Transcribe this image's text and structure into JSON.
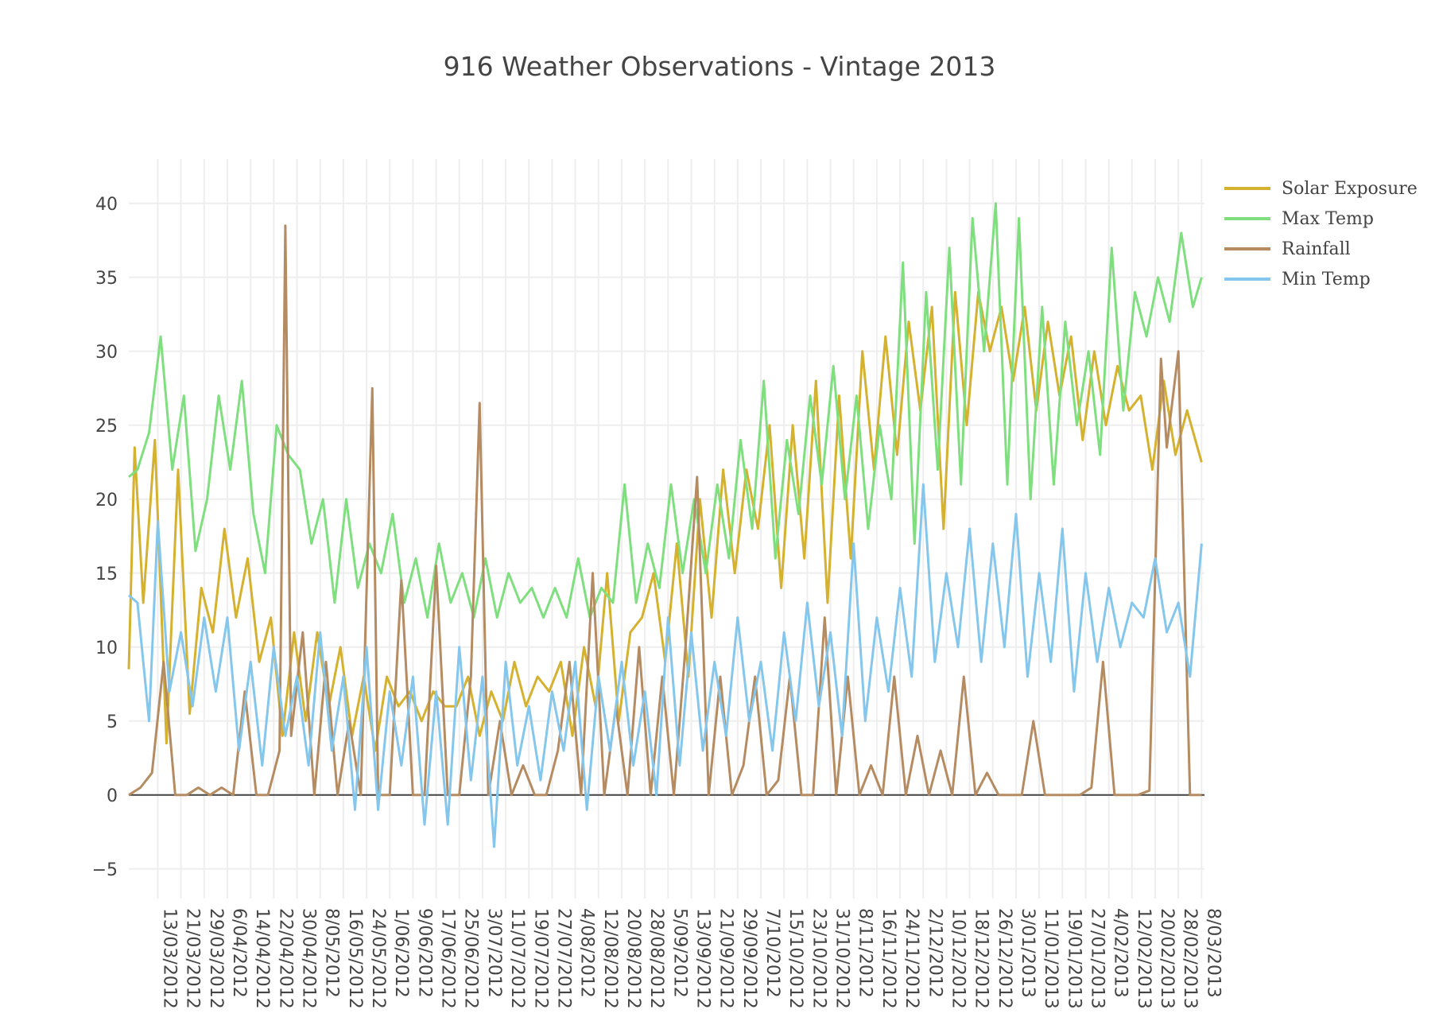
{
  "chart_data": {
    "type": "line",
    "title": "916 Weather Observations - Vintage 2013",
    "xlabel": "",
    "ylabel": "",
    "ylim": [
      -7,
      43
    ],
    "yticks": [
      -5,
      0,
      5,
      10,
      15,
      20,
      25,
      30,
      35,
      40
    ],
    "xlim": [
      "2012-03-03",
      "2013-03-09"
    ],
    "xtick_labels": [
      "13/03/2012",
      "21/03/2012",
      "29/03/2012",
      "6/04/2012",
      "14/04/2012",
      "22/04/2012",
      "30/04/2012",
      "8/05/2012",
      "16/05/2012",
      "24/05/2012",
      "1/06/2012",
      "9/06/2012",
      "17/06/2012",
      "25/06/2012",
      "3/07/2012",
      "11/07/2012",
      "19/07/2012",
      "27/07/2012",
      "4/08/2012",
      "12/08/2012",
      "20/08/2012",
      "28/08/2012",
      "5/09/2012",
      "13/09/2012",
      "21/09/2012",
      "29/09/2012",
      "7/10/2012",
      "15/10/2012",
      "23/10/2012",
      "31/10/2012",
      "8/11/2012",
      "16/11/2012",
      "24/11/2012",
      "2/12/2012",
      "10/12/2012",
      "18/12/2012",
      "26/12/2012",
      "3/01/2013",
      "11/01/2013",
      "19/01/2013",
      "27/01/2013",
      "4/02/2013",
      "12/02/2013",
      "20/02/2013",
      "28/02/2013",
      "8/03/2013"
    ],
    "grid": true,
    "legend_position": "top-right",
    "series": [
      {
        "name": "Solar Exposure",
        "color": "#d4b12f",
        "x": [
          "2012-03-03",
          "2012-03-05",
          "2012-03-08",
          "2012-03-12",
          "2012-03-16",
          "2012-03-20",
          "2012-03-24",
          "2012-03-28",
          "2012-04-01",
          "2012-04-05",
          "2012-04-09",
          "2012-04-13",
          "2012-04-17",
          "2012-04-21",
          "2012-04-25",
          "2012-04-29",
          "2012-05-03",
          "2012-05-07",
          "2012-05-11",
          "2012-05-15",
          "2012-05-19",
          "2012-05-23",
          "2012-05-27",
          "2012-05-31",
          "2012-06-04",
          "2012-06-08",
          "2012-06-12",
          "2012-06-16",
          "2012-06-20",
          "2012-06-24",
          "2012-06-28",
          "2012-07-02",
          "2012-07-06",
          "2012-07-10",
          "2012-07-14",
          "2012-07-18",
          "2012-07-22",
          "2012-07-26",
          "2012-07-30",
          "2012-08-03",
          "2012-08-07",
          "2012-08-11",
          "2012-08-15",
          "2012-08-19",
          "2012-08-23",
          "2012-08-27",
          "2012-08-31",
          "2012-09-04",
          "2012-09-08",
          "2012-09-12",
          "2012-09-16",
          "2012-09-20",
          "2012-09-24",
          "2012-09-28",
          "2012-10-02",
          "2012-10-06",
          "2012-10-10",
          "2012-10-14",
          "2012-10-18",
          "2012-10-22",
          "2012-10-26",
          "2012-10-30",
          "2012-11-03",
          "2012-11-07",
          "2012-11-11",
          "2012-11-15",
          "2012-11-19",
          "2012-11-23",
          "2012-11-27",
          "2012-12-01",
          "2012-12-05",
          "2012-12-09",
          "2012-12-13",
          "2012-12-17",
          "2012-12-21",
          "2012-12-25",
          "2012-12-29",
          "2013-01-02",
          "2013-01-06",
          "2013-01-10",
          "2013-01-14",
          "2013-01-18",
          "2013-01-22",
          "2013-01-26",
          "2013-01-30",
          "2013-02-03",
          "2013-02-07",
          "2013-02-11",
          "2013-02-15",
          "2013-02-19",
          "2013-02-23",
          "2013-02-27",
          "2013-03-03",
          "2013-03-08"
        ],
        "y": [
          8.5,
          23.5,
          13,
          24,
          3.5,
          22,
          5.5,
          14,
          11,
          18,
          12,
          16,
          9,
          12,
          4,
          11,
          5,
          11,
          6,
          10,
          4,
          8,
          3,
          8,
          6,
          7,
          5,
          7,
          6,
          6,
          8,
          4,
          7,
          5,
          9,
          6,
          8,
          7,
          9,
          4,
          10,
          6,
          15,
          5,
          11,
          12,
          15,
          9,
          17,
          8,
          20,
          12,
          22,
          15,
          22,
          18,
          25,
          14,
          25,
          16,
          28,
          13,
          27,
          16,
          30,
          22,
          31,
          23,
          32,
          26,
          33,
          18,
          34,
          25,
          34,
          30,
          33,
          28,
          33,
          26,
          32,
          27,
          31,
          24,
          30,
          25,
          29,
          26,
          27,
          22,
          28,
          23,
          26,
          22.5
        ]
      },
      {
        "name": "Max Temp",
        "color": "#7fdf7f",
        "x": [
          "2012-03-03",
          "2012-03-06",
          "2012-03-10",
          "2012-03-14",
          "2012-03-18",
          "2012-03-22",
          "2012-03-26",
          "2012-03-30",
          "2012-04-03",
          "2012-04-07",
          "2012-04-11",
          "2012-04-15",
          "2012-04-19",
          "2012-04-23",
          "2012-04-27",
          "2012-05-01",
          "2012-05-05",
          "2012-05-09",
          "2012-05-13",
          "2012-05-17",
          "2012-05-21",
          "2012-05-25",
          "2012-05-29",
          "2012-06-02",
          "2012-06-06",
          "2012-06-10",
          "2012-06-14",
          "2012-06-18",
          "2012-06-22",
          "2012-06-26",
          "2012-06-30",
          "2012-07-04",
          "2012-07-08",
          "2012-07-12",
          "2012-07-16",
          "2012-07-20",
          "2012-07-24",
          "2012-07-28",
          "2012-08-01",
          "2012-08-05",
          "2012-08-09",
          "2012-08-13",
          "2012-08-17",
          "2012-08-21",
          "2012-08-25",
          "2012-08-29",
          "2012-09-02",
          "2012-09-06",
          "2012-09-10",
          "2012-09-14",
          "2012-09-18",
          "2012-09-22",
          "2012-09-26",
          "2012-09-30",
          "2012-10-04",
          "2012-10-08",
          "2012-10-12",
          "2012-10-16",
          "2012-10-20",
          "2012-10-24",
          "2012-10-28",
          "2012-11-01",
          "2012-11-05",
          "2012-11-09",
          "2012-11-13",
          "2012-11-17",
          "2012-11-21",
          "2012-11-25",
          "2012-11-29",
          "2012-12-03",
          "2012-12-07",
          "2012-12-11",
          "2012-12-15",
          "2012-12-19",
          "2012-12-23",
          "2012-12-27",
          "2012-12-31",
          "2013-01-04",
          "2013-01-08",
          "2013-01-12",
          "2013-01-16",
          "2013-01-20",
          "2013-01-24",
          "2013-01-28",
          "2013-02-01",
          "2013-02-05",
          "2013-02-09",
          "2013-02-13",
          "2013-02-17",
          "2013-02-21",
          "2013-02-25",
          "2013-03-01",
          "2013-03-05",
          "2013-03-08"
        ],
        "y": [
          21.5,
          22,
          24.5,
          31,
          22,
          27,
          16.5,
          20,
          27,
          22,
          28,
          19,
          15,
          25,
          23,
          22,
          17,
          20,
          13,
          20,
          14,
          17,
          15,
          19,
          13,
          16,
          12,
          17,
          13,
          15,
          12,
          16,
          12,
          15,
          13,
          14,
          12,
          14,
          12,
          16,
          12,
          14,
          13,
          21,
          13,
          17,
          14,
          21,
          15,
          20,
          15,
          21,
          16,
          24,
          18,
          28,
          16,
          24,
          19,
          27,
          21,
          29,
          20,
          27,
          18,
          25,
          20,
          36,
          17,
          34,
          22,
          37,
          21,
          39,
          30,
          40,
          21,
          39,
          20,
          33,
          21,
          32,
          25,
          30,
          23,
          37,
          26,
          34,
          31,
          35,
          32,
          38,
          33,
          35
        ]
      },
      {
        "name": "Rainfall",
        "color": "#b58b62",
        "x": [
          "2012-03-03",
          "2012-03-07",
          "2012-03-11",
          "2012-03-15",
          "2012-03-19",
          "2012-03-23",
          "2012-03-27",
          "2012-03-31",
          "2012-04-04",
          "2012-04-08",
          "2012-04-12",
          "2012-04-16",
          "2012-04-20",
          "2012-04-24",
          "2012-04-26",
          "2012-04-28",
          "2012-05-02",
          "2012-05-06",
          "2012-05-10",
          "2012-05-14",
          "2012-05-18",
          "2012-05-22",
          "2012-05-26",
          "2012-05-28",
          "2012-06-01",
          "2012-06-05",
          "2012-06-09",
          "2012-06-13",
          "2012-06-17",
          "2012-06-21",
          "2012-06-25",
          "2012-06-29",
          "2012-07-02",
          "2012-07-05",
          "2012-07-09",
          "2012-07-13",
          "2012-07-17",
          "2012-07-21",
          "2012-07-25",
          "2012-07-29",
          "2012-08-02",
          "2012-08-06",
          "2012-08-10",
          "2012-08-14",
          "2012-08-18",
          "2012-08-22",
          "2012-08-26",
          "2012-08-30",
          "2012-09-03",
          "2012-09-07",
          "2012-09-11",
          "2012-09-15",
          "2012-09-19",
          "2012-09-23",
          "2012-09-27",
          "2012-10-01",
          "2012-10-05",
          "2012-10-09",
          "2012-10-13",
          "2012-10-17",
          "2012-10-21",
          "2012-10-25",
          "2012-10-29",
          "2012-11-02",
          "2012-11-06",
          "2012-11-10",
          "2012-11-14",
          "2012-11-18",
          "2012-11-22",
          "2012-11-26",
          "2012-11-30",
          "2012-12-04",
          "2012-12-08",
          "2012-12-12",
          "2012-12-16",
          "2012-12-20",
          "2012-12-24",
          "2012-12-28",
          "2013-01-01",
          "2013-01-05",
          "2013-01-09",
          "2013-01-13",
          "2013-01-17",
          "2013-01-21",
          "2013-01-25",
          "2013-01-29",
          "2013-02-02",
          "2013-02-06",
          "2013-02-10",
          "2013-02-14",
          "2013-02-18",
          "2013-02-22",
          "2013-02-24",
          "2013-02-28",
          "2013-03-04",
          "2013-03-08"
        ],
        "y": [
          0,
          0.5,
          1.5,
          9,
          0,
          0,
          0.5,
          0,
          0.5,
          0,
          7,
          0,
          0,
          3,
          38.5,
          4,
          11,
          0,
          9,
          0,
          5,
          0,
          27.5,
          0,
          0,
          14.5,
          0,
          0,
          15.5,
          0,
          0,
          8,
          26.5,
          0,
          5,
          0,
          2,
          0,
          0,
          3,
          9,
          0,
          15,
          0,
          6,
          0,
          10,
          0,
          8,
          0,
          10,
          21.5,
          0,
          8,
          0,
          2,
          8,
          0,
          1,
          8,
          0,
          0,
          12,
          0,
          8,
          0,
          2,
          0,
          8,
          0,
          4,
          0,
          3,
          0,
          8,
          0,
          1.5,
          0,
          0,
          0,
          5,
          0,
          0,
          0,
          0,
          0.5,
          9,
          0,
          0,
          0,
          0.3,
          29.5,
          23.5,
          30,
          0,
          0
        ]
      },
      {
        "name": "Min Temp",
        "color": "#85c7ec",
        "x": [
          "2012-03-03",
          "2012-03-06",
          "2012-03-10",
          "2012-03-13",
          "2012-03-17",
          "2012-03-21",
          "2012-03-25",
          "2012-03-29",
          "2012-04-02",
          "2012-04-06",
          "2012-04-10",
          "2012-04-14",
          "2012-04-18",
          "2012-04-22",
          "2012-04-26",
          "2012-04-30",
          "2012-05-04",
          "2012-05-08",
          "2012-05-12",
          "2012-05-16",
          "2012-05-20",
          "2012-05-24",
          "2012-05-28",
          "2012-06-01",
          "2012-06-05",
          "2012-06-09",
          "2012-06-13",
          "2012-06-17",
          "2012-06-21",
          "2012-06-25",
          "2012-06-29",
          "2012-07-03",
          "2012-07-07",
          "2012-07-11",
          "2012-07-15",
          "2012-07-19",
          "2012-07-23",
          "2012-07-27",
          "2012-07-31",
          "2012-08-04",
          "2012-08-08",
          "2012-08-12",
          "2012-08-16",
          "2012-08-20",
          "2012-08-24",
          "2012-08-28",
          "2012-09-01",
          "2012-09-05",
          "2012-09-09",
          "2012-09-13",
          "2012-09-17",
          "2012-09-21",
          "2012-09-25",
          "2012-09-29",
          "2012-10-03",
          "2012-10-07",
          "2012-10-11",
          "2012-10-15",
          "2012-10-19",
          "2012-10-23",
          "2012-10-27",
          "2012-10-31",
          "2012-11-04",
          "2012-11-08",
          "2012-11-12",
          "2012-11-16",
          "2012-11-20",
          "2012-11-24",
          "2012-11-28",
          "2012-12-02",
          "2012-12-06",
          "2012-12-10",
          "2012-12-14",
          "2012-12-18",
          "2012-12-22",
          "2012-12-26",
          "2012-12-30",
          "2013-01-03",
          "2013-01-07",
          "2013-01-11",
          "2013-01-15",
          "2013-01-19",
          "2013-01-23",
          "2013-01-27",
          "2013-01-31",
          "2013-02-04",
          "2013-02-08",
          "2013-02-12",
          "2013-02-16",
          "2013-02-20",
          "2013-02-24",
          "2013-02-28",
          "2013-03-04",
          "2013-03-08"
        ],
        "y": [
          13.5,
          13,
          5,
          18.5,
          7,
          11,
          6,
          12,
          7,
          12,
          3,
          9,
          2,
          10,
          4,
          8,
          2,
          11,
          3,
          8,
          -1,
          10,
          -1,
          7,
          2,
          8,
          -2,
          7,
          -2,
          10,
          1,
          8,
          -3.5,
          9,
          2,
          6,
          1,
          7,
          3,
          9,
          -1,
          8,
          3,
          9,
          2,
          7,
          0,
          12,
          2,
          11,
          3,
          9,
          4,
          12,
          5,
          9,
          3,
          11,
          5,
          13,
          6,
          11,
          4,
          17,
          5,
          12,
          7,
          14,
          8,
          21,
          9,
          15,
          10,
          18,
          9,
          17,
          10,
          19,
          8,
          15,
          9,
          18,
          7,
          15,
          9,
          14,
          10,
          13,
          12,
          16,
          11,
          13,
          8,
          17
        ]
      }
    ]
  }
}
